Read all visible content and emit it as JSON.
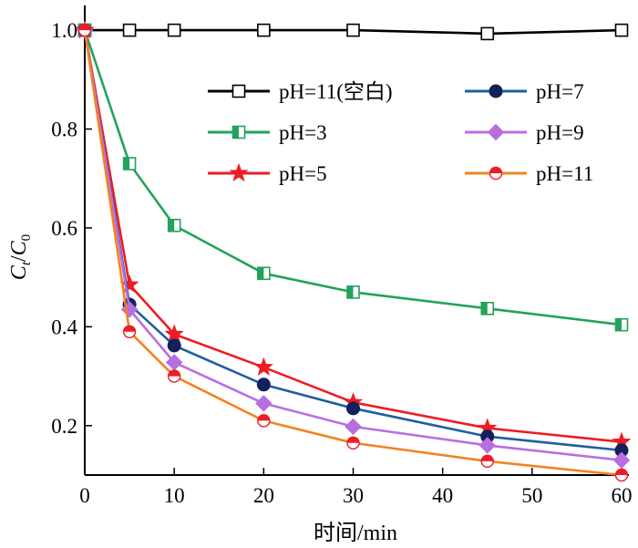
{
  "chart_data": {
    "type": "line",
    "xlabel": "时间/min",
    "ylabel": {
      "main": "C",
      "sub1": "t",
      "slash": "/",
      "main2": "C",
      "sub2": "0"
    },
    "xlim": [
      0,
      60
    ],
    "ylim": [
      0.1,
      1.05
    ],
    "x_ticks": [
      0,
      10,
      20,
      30,
      40,
      50,
      60
    ],
    "x_tick_labels": [
      "0",
      "10",
      "20",
      "30",
      "40",
      "50",
      "60"
    ],
    "y_ticks": [
      0.2,
      0.4,
      0.6,
      0.8,
      1.0
    ],
    "y_tick_labels": [
      "0.2",
      "0.4",
      "0.6",
      "0.8",
      "1.0"
    ],
    "grid": false,
    "legend_placement": "upper-right, two columns",
    "x": [
      0,
      5,
      10,
      20,
      30,
      45,
      60
    ],
    "series": [
      {
        "name": "pH=11(空白)",
        "color": "#000000",
        "marker": "square-open",
        "values": [
          1.0,
          1.0,
          1.0,
          1.0,
          1.0,
          0.993,
          1.0
        ]
      },
      {
        "name": "pH=3",
        "color": "#22a35a",
        "marker": "square-half",
        "values": [
          1.0,
          0.73,
          0.605,
          0.508,
          0.47,
          0.437,
          0.404
        ]
      },
      {
        "name": "pH=5",
        "color": "#ee1c24",
        "marker": "star",
        "values": [
          1.0,
          0.485,
          0.385,
          0.318,
          0.247,
          0.195,
          0.167
        ]
      },
      {
        "name": "pH=7",
        "color": "#1f5f9e",
        "marker": "circle-navy",
        "values": [
          1.0,
          0.445,
          0.362,
          0.283,
          0.235,
          0.178,
          0.15
        ]
      },
      {
        "name": "pH=9",
        "color": "#b76fe0",
        "marker": "diamond",
        "values": [
          1.0,
          0.435,
          0.328,
          0.245,
          0.198,
          0.16,
          0.13
        ]
      },
      {
        "name": "pH=11",
        "color": "#f38220",
        "marker": "circle-half-red",
        "values": [
          1.0,
          0.39,
          0.3,
          0.21,
          0.165,
          0.128,
          0.1
        ]
      }
    ]
  }
}
